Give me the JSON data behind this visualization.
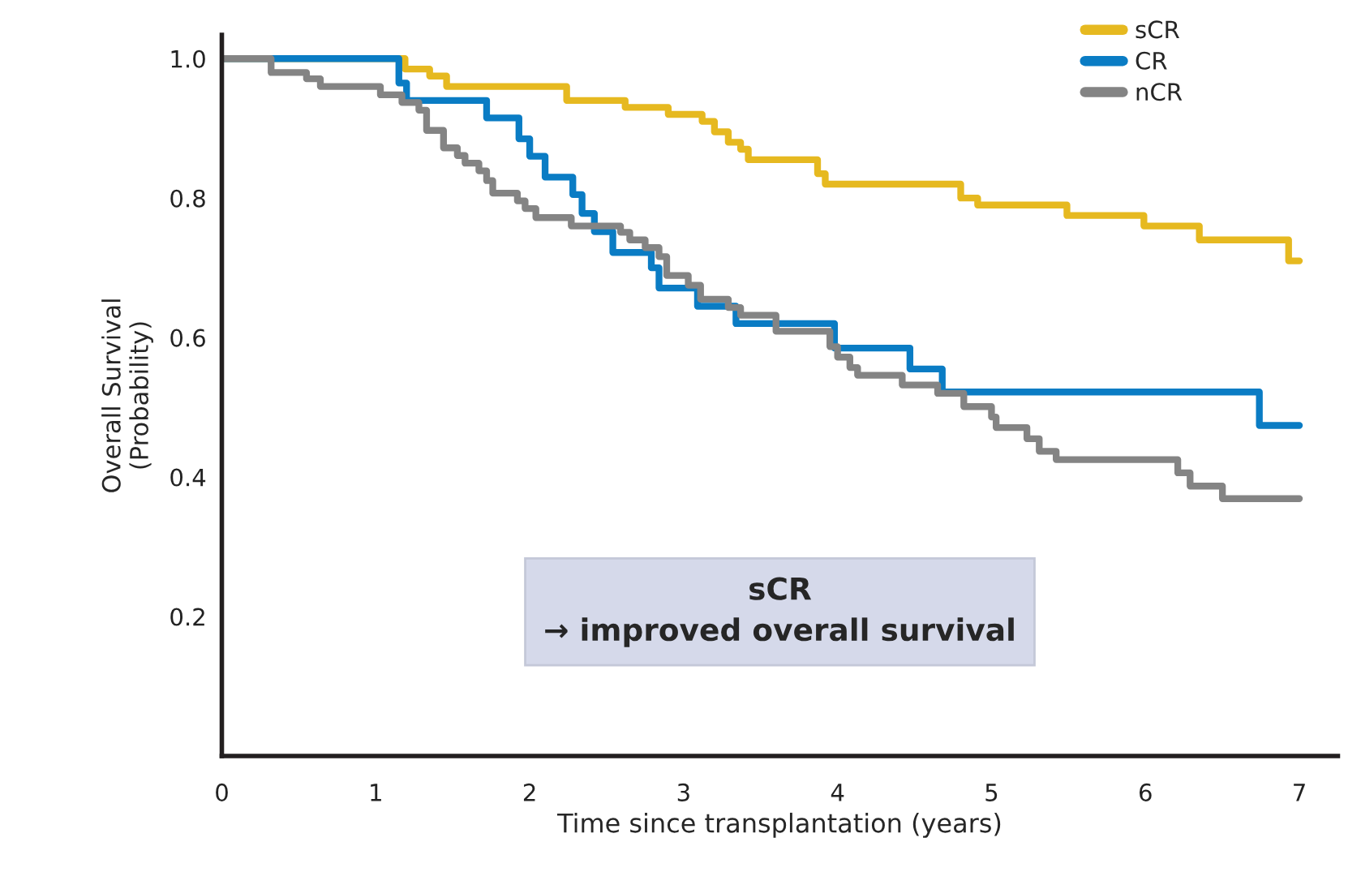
{
  "chart_data": {
    "type": "step",
    "xlabel": "Time since transplantation (years)",
    "ylabel": "Overall Survival\n(Probability)",
    "xlim": [
      0,
      7.25
    ],
    "ylim": [
      0,
      1.034
    ],
    "xticks": [
      0,
      1,
      2,
      3,
      4,
      5,
      6,
      7
    ],
    "yticks": [
      {
        "value": 0.2,
        "label": "0.2"
      },
      {
        "value": 0.4,
        "label": "0.4"
      },
      {
        "value": 0.6,
        "label": "0.6"
      },
      {
        "value": 0.8,
        "label": "0.8"
      },
      {
        "value": 1.0,
        "label": "1.0"
      }
    ],
    "grid": false,
    "legend": "top right",
    "line_style": "solid",
    "marker": "none",
    "annotations": [
      "sCR\n→ improved overall survival"
    ],
    "series": [
      {
        "name": "sCR",
        "color": "#e6b920",
        "x": [
          0,
          1.19,
          1.35,
          1.46,
          2.24,
          2.62,
          2.9,
          3.12,
          3.2,
          3.29,
          3.37,
          3.42,
          3.87,
          3.92,
          4.8,
          4.91,
          5.49,
          5.99,
          6.35,
          6.93,
          7.0
        ],
        "values": [
          1.0,
          0.985,
          0.975,
          0.96,
          0.94,
          0.93,
          0.92,
          0.91,
          0.895,
          0.88,
          0.87,
          0.855,
          0.835,
          0.82,
          0.8,
          0.79,
          0.775,
          0.76,
          0.74,
          0.71,
          0.71
        ]
      },
      {
        "name": "CR",
        "color": "#0a7cc4",
        "x": [
          0,
          1.15,
          1.2,
          1.72,
          1.93,
          2.0,
          2.1,
          2.28,
          2.34,
          2.42,
          2.54,
          2.79,
          2.84,
          3.09,
          3.34,
          3.98,
          4.47,
          4.68,
          6.74,
          7.0
        ],
        "values": [
          1.0,
          0.965,
          0.94,
          0.915,
          0.885,
          0.86,
          0.83,
          0.805,
          0.778,
          0.752,
          0.722,
          0.7,
          0.671,
          0.645,
          0.62,
          0.585,
          0.555,
          0.522,
          0.474,
          0.474
        ]
      },
      {
        "name": "nCR",
        "color": "#848484",
        "x": [
          0,
          0.32,
          0.55,
          0.64,
          1.03,
          1.17,
          1.28,
          1.33,
          1.44,
          1.53,
          1.58,
          1.67,
          1.72,
          1.76,
          1.92,
          1.97,
          2.04,
          2.27,
          2.59,
          2.65,
          2.75,
          2.84,
          2.89,
          3.03,
          3.11,
          3.29,
          3.37,
          3.6,
          3.95,
          4.0,
          4.08,
          4.13,
          4.42,
          4.65,
          4.82,
          5.0,
          5.03,
          5.23,
          5.31,
          5.42,
          6.21,
          6.29,
          6.5,
          7.0
        ],
        "values": [
          1.0,
          0.98,
          0.971,
          0.96,
          0.948,
          0.937,
          0.926,
          0.897,
          0.872,
          0.861,
          0.85,
          0.839,
          0.825,
          0.807,
          0.796,
          0.785,
          0.772,
          0.76,
          0.751,
          0.74,
          0.729,
          0.716,
          0.689,
          0.675,
          0.655,
          0.643,
          0.632,
          0.609,
          0.587,
          0.572,
          0.557,
          0.546,
          0.532,
          0.52,
          0.501,
          0.486,
          0.471,
          0.455,
          0.437,
          0.425,
          0.406,
          0.387,
          0.369,
          0.369
        ]
      }
    ]
  }
}
